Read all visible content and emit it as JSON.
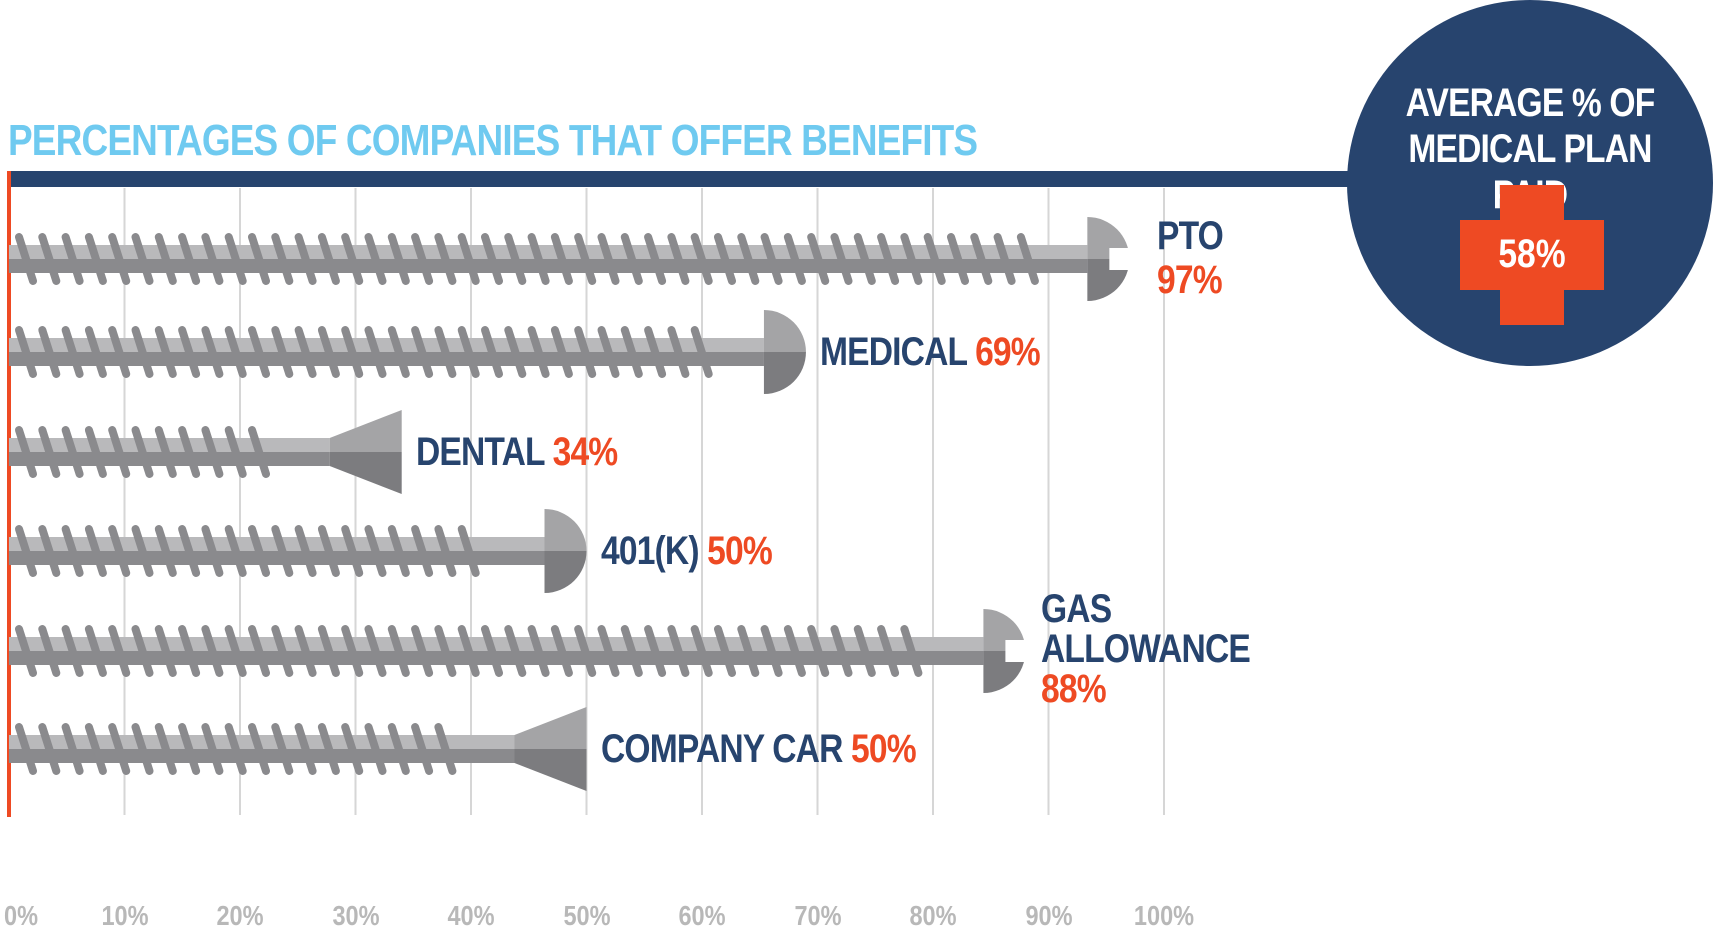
{
  "colors": {
    "navy": "#27446e",
    "orange": "#ee4a23",
    "lightblue": "#6fcaf0",
    "grid": "#d6d6d6",
    "tick": "#b8b8b8",
    "screw_light": "#b9b9bb",
    "screw_dark": "#8a8a8d",
    "head_light": "#a4a4a6",
    "head_dark": "#7c7c7f"
  },
  "chart_data": {
    "type": "bar",
    "title": "PERCENTAGES OF COMPANIES THAT OFFER BENEFITS",
    "xlim": [
      0,
      100
    ],
    "ticks": [
      "0%",
      "10%",
      "20%",
      "30%",
      "40%",
      "50%",
      "60%",
      "70%",
      "80%",
      "90%",
      "100%"
    ],
    "grid": true,
    "categories": [
      "PTO",
      "MEDICAL",
      "DENTAL",
      "401(K)",
      "GAS ALLOWANCE",
      "COMPANY CAR"
    ],
    "values": [
      97,
      69,
      34,
      50,
      88,
      50
    ],
    "value_labels": [
      "97%",
      "69%",
      "34%",
      "50%",
      "88%",
      "50%"
    ],
    "head_styles": [
      "slot",
      "round",
      "flat",
      "round",
      "slot",
      "flat"
    ]
  },
  "callout": {
    "title": "AVERAGE % OF\nMEDICAL PLAN PAID",
    "value": "58%",
    "icon": "medical-cross-icon"
  }
}
